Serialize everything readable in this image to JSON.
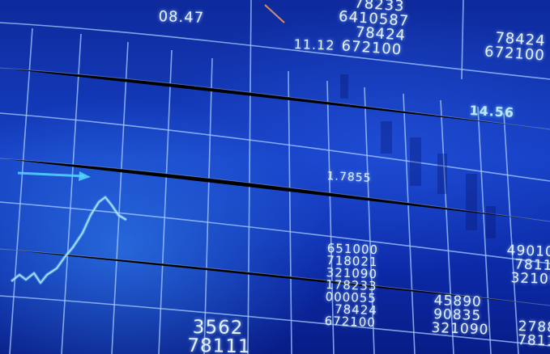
{
  "colors": {
    "background_deep": "#081c86",
    "background_mid": "#1640c4",
    "grid_line": "#a8ccff",
    "text": "#e4f0ff",
    "glow_cyan": "#6fd0ff",
    "arrow_cyan": "#53d6ff",
    "accent_orange": "#d08a6a"
  },
  "labels": {
    "top_left": "08.47",
    "mid_a": "11.12",
    "mid_b": "14.56",
    "center": "1.7855"
  },
  "columns": {
    "top_center": [
      "78233",
      "6410587",
      "78424",
      "672100"
    ],
    "top_right": [
      "78424",
      "672100"
    ],
    "bottom_center": [
      "651000",
      "718021",
      "321090",
      "178233",
      "000055",
      "78424",
      "672100"
    ],
    "bottom_mid": [
      "45890",
      "90835",
      "321090"
    ],
    "bottom_right": [
      "49010",
      "7811",
      "32109"
    ],
    "bottom_far_right": [
      "2788",
      "7811"
    ],
    "bottom_left": [
      "3562",
      "78111"
    ]
  },
  "icons": {
    "arrow": "arrow-right-icon",
    "sparkline": "sparkline-icon",
    "tick": "orange-tick-icon"
  }
}
